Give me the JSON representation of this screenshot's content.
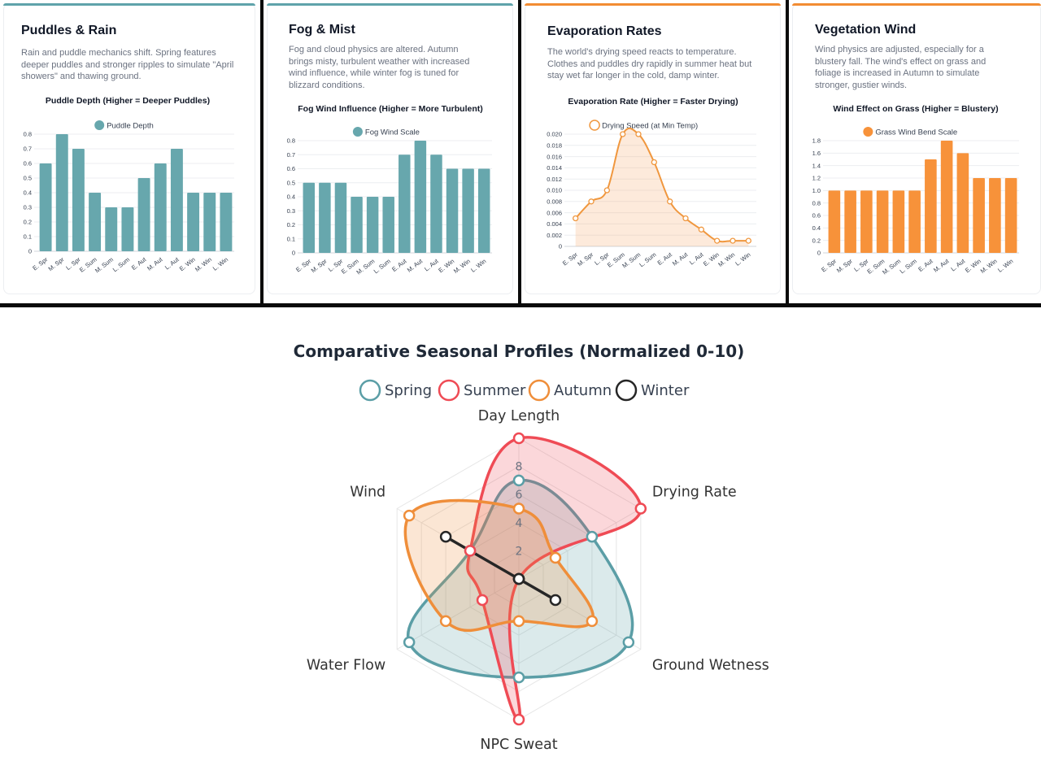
{
  "panels": [
    {
      "title": "Puddles & Rain",
      "description": "Rain and puddle mechanics shift. Spring features deeper puddles and stronger ripples to simulate \"April showers\" and thawing ground.",
      "accent": "#5fa3aa"
    },
    {
      "title": "Fog & Mist",
      "description": "Fog and cloud physics are altered. Autumn brings misty, turbulent weather with increased wind influence, while winter fog is tuned for blizzard conditions.",
      "accent": "#5fa3aa"
    },
    {
      "title": "Evaporation Rates",
      "description": "The world's drying speed reacts to temperature. Clothes and puddles dry rapidly in summer heat but stay wet far longer in the cold, damp winter.",
      "accent": "#f28c33"
    },
    {
      "title": "Vegetation Wind",
      "description": "Wind physics are adjusted, especially for a blustery fall. The wind's effect on grass and foliage is increased in Autumn to simulate stronger, gustier winds.",
      "accent": "#f28c33"
    }
  ],
  "chart_data": [
    {
      "type": "bar",
      "title": "Puddle Depth (Higher = Deeper Puddles)",
      "categories": [
        "E. Spr",
        "M. Spr",
        "L. Spr",
        "E. Sum",
        "M. Sum",
        "L. Sum",
        "E. Aut",
        "M. Aut",
        "L. Aut",
        "E. Win",
        "M. Win",
        "L. Win"
      ],
      "series": [
        {
          "name": "Puddle Depth",
          "values": [
            0.6,
            0.8,
            0.7,
            0.4,
            0.3,
            0.3,
            0.5,
            0.6,
            0.7,
            0.4,
            0.4,
            0.4
          ],
          "color": "#67a7ad"
        }
      ],
      "ylim": [
        0,
        0.8
      ],
      "yticks": [
        "0",
        "0.1",
        "0.2",
        "0.3",
        "0.4",
        "0.5",
        "0.6",
        "0.7",
        "0.8"
      ],
      "legend": "top",
      "grid": true
    },
    {
      "type": "bar",
      "title": "Fog Wind Influence (Higher = More Turbulent)",
      "categories": [
        "E. Spr",
        "M. Spr",
        "L. Spr",
        "E. Sum",
        "M. Sum",
        "L. Sum",
        "E. Aut",
        "M. Aut",
        "L. Aut",
        "E. Win",
        "M. Win",
        "L. Win"
      ],
      "series": [
        {
          "name": "Fog Wind Scale",
          "values": [
            0.5,
            0.5,
            0.5,
            0.4,
            0.4,
            0.4,
            0.7,
            0.8,
            0.7,
            0.6,
            0.6,
            0.6
          ],
          "color": "#67a7ad"
        }
      ],
      "ylim": [
        0,
        0.8
      ],
      "yticks": [
        "0",
        "0.1",
        "0.2",
        "0.3",
        "0.4",
        "0.5",
        "0.6",
        "0.7",
        "0.8"
      ],
      "legend": "top",
      "grid": true
    },
    {
      "type": "line",
      "title": "Evaporation Rate (Higher = Faster Drying)",
      "categories": [
        "E. Spr",
        "M. Spr",
        "L. Spr",
        "E. Sum",
        "M. Sum",
        "L. Sum",
        "E. Aut",
        "M. Aut",
        "L. Aut",
        "E. Win",
        "M. Win",
        "L. Win"
      ],
      "series": [
        {
          "name": "Drying Speed (at Min Temp)",
          "values": [
            0.005,
            0.008,
            0.01,
            0.02,
            0.02,
            0.015,
            0.008,
            0.005,
            0.003,
            0.001,
            0.001,
            0.001
          ],
          "color": "#f0973e",
          "fill": true
        }
      ],
      "ylim": [
        0,
        0.02
      ],
      "yticks": [
        "0",
        "0.002",
        "0.004",
        "0.006",
        "0.008",
        "0.010",
        "0.012",
        "0.014",
        "0.016",
        "0.018",
        "0.020"
      ],
      "legend": "top",
      "grid": true
    },
    {
      "type": "bar",
      "title": "Wind Effect on Grass (Higher = Blustery)",
      "categories": [
        "E. Spr",
        "M. Spr",
        "L. Spr",
        "E. Sum",
        "M. Sum",
        "L. Sum",
        "E. Aut",
        "M. Aut",
        "L. Aut",
        "E. Win",
        "M. Win",
        "L. Win"
      ],
      "series": [
        {
          "name": "Grass Wind Bend Scale",
          "values": [
            1.0,
            1.0,
            1.0,
            1.0,
            1.0,
            1.0,
            1.5,
            1.8,
            1.6,
            1.2,
            1.2,
            1.2
          ],
          "color": "#f7923a"
        }
      ],
      "ylim": [
        0,
        1.8
      ],
      "yticks": [
        "0",
        "0.2",
        "0.4",
        "0.6",
        "0.8",
        "1.0",
        "1.2",
        "1.4",
        "1.6",
        "1.8"
      ],
      "legend": "top",
      "grid": true
    },
    {
      "type": "radar",
      "title": "Comparative Seasonal Profiles (Normalized 0-10)",
      "axes": [
        "Day Length",
        "Drying Rate",
        "Ground Wetness",
        "NPC Sweat",
        "Water Flow",
        "Wind"
      ],
      "rlim": [
        0,
        10
      ],
      "rticks": [
        "2",
        "4",
        "6",
        "8"
      ],
      "legend": "top",
      "series": [
        {
          "name": "Spring",
          "values": [
            7,
            6,
            9,
            7,
            9,
            4
          ],
          "color": "#5b9ea6"
        },
        {
          "name": "Summer",
          "values": [
            10,
            10,
            0,
            10,
            3,
            4
          ],
          "color": "#ef4b55"
        },
        {
          "name": "Autumn",
          "values": [
            5,
            3,
            6,
            3,
            6,
            9
          ],
          "color": "#ef8e3a"
        },
        {
          "name": "Winter",
          "values": [
            0,
            0,
            3,
            0,
            0,
            6
          ],
          "color": "#262626"
        }
      ]
    }
  ]
}
